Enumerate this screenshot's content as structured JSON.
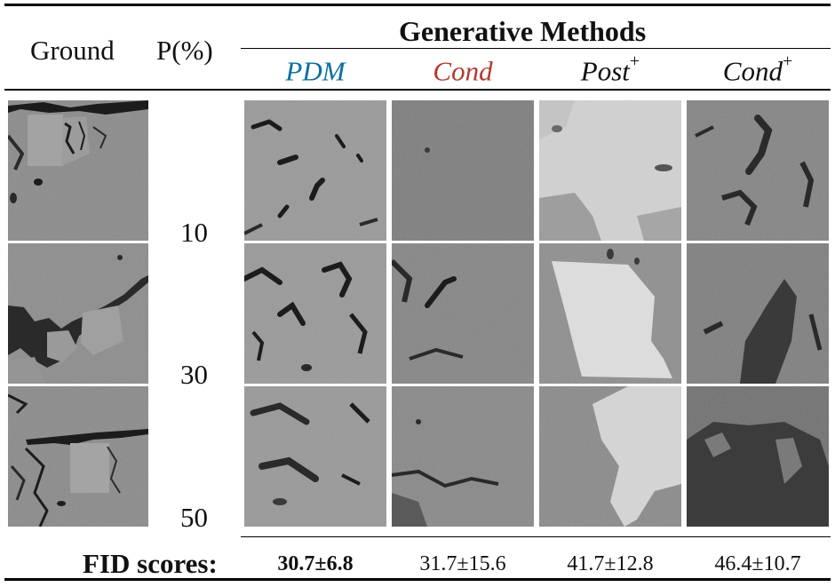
{
  "header": {
    "col_ground": "Ground",
    "col_p": "P(%)",
    "group_title": "Generative Methods"
  },
  "methods": [
    {
      "label": "PDM",
      "sup": "",
      "color": "#0b6fa0"
    },
    {
      "label": "Cond",
      "sup": "",
      "color": "#b03a2e"
    },
    {
      "label": "Post",
      "sup": "+",
      "color": "#111111"
    },
    {
      "label": "Cond",
      "sup": "+",
      "color": "#111111"
    }
  ],
  "rows": [
    {
      "p": "10"
    },
    {
      "p": "30"
    },
    {
      "p": "50"
    }
  ],
  "fid": {
    "label": "FID scores:",
    "values": [
      "30.7±6.8",
      "31.7±15.6",
      "41.7±12.8",
      "46.4±10.7"
    ],
    "best_index": 0
  },
  "colors": {
    "tile_gray": "#8e8e8e",
    "pore_dark": "#1c1c1c",
    "post_light": "#cfcfcf"
  }
}
